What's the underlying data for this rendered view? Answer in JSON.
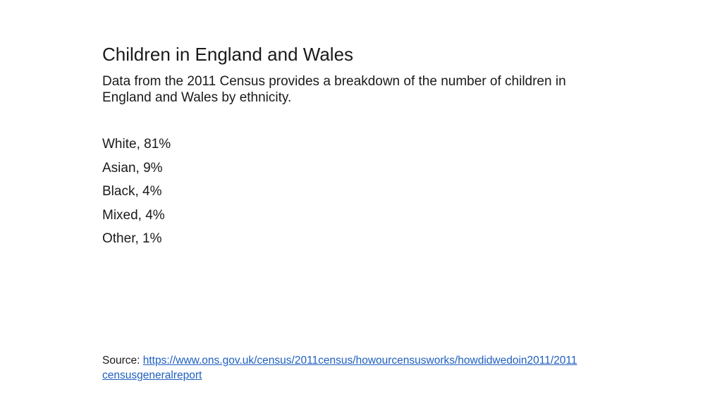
{
  "slide": {
    "title": "Children in England and Wales",
    "intro": [
      "Data from the 2011 Census provides a breakdown of the number of children in",
      "England and Wales by ethnicity."
    ],
    "stats": [
      "White, 81%",
      "Asian, 9%",
      "Black, 4%",
      "Mixed, 4%",
      "Other, 1%"
    ],
    "source": {
      "label": "Source: ",
      "link_part1": "https://www.ons.gov.uk/census/2011census/howourcensusworks/howdidwedoin2011/2011",
      "link_part2": "censusgeneralreport",
      "href": "https://www.ons.gov.uk/census/2011census/howourcensusworks/howdidwedoin2011/2011censusgeneralreport"
    },
    "colors": {
      "text": "#1a1a1a",
      "link": "#1f5fbf",
      "background": "#ffffff"
    }
  }
}
